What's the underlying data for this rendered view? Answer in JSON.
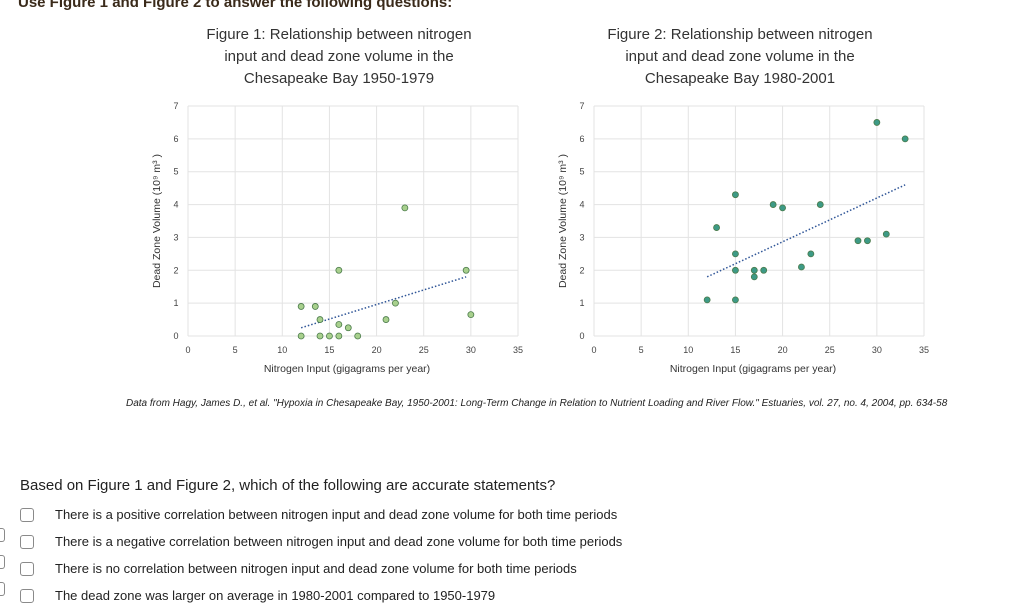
{
  "header": {
    "title": "Use Figure 1 and Figure 2 to answer the following questions:"
  },
  "citation": "Data from Hagy, James D., et al. \"Hypoxia in Chesapeake Bay, 1950-2001: Long-Term Change in Relation to Nutrient Loading and River Flow.\" Estuaries, vol. 27, no. 4, 2004, pp. 634-58",
  "question": {
    "prompt": "Based on Figure 1 and Figure 2, which of the following are accurate statements?",
    "options": [
      {
        "label": "There is a positive correlation between nitrogen input and dead zone volume for both time periods"
      },
      {
        "label": "There is a negative correlation between nitrogen input and dead zone volume for both time periods"
      },
      {
        "label": "There is no correlation between nitrogen input and dead zone volume for both time periods"
      },
      {
        "label": "The dead zone was larger on average in 1980-2001 compared to 1950-1979"
      }
    ]
  },
  "colors": {
    "fig1_marker": "#a8d08d",
    "fig2_marker": "#3d9a86",
    "marker_edge": "#4a7a4a",
    "trendline": "#2f5597"
  },
  "chart_data": [
    {
      "type": "scatter",
      "title_lines": [
        "Figure 1: Relationship between nitrogen",
        "input and dead zone volume in the",
        "Chesapeake Bay 1950-1979"
      ],
      "xlabel": "Nitrogen Input (gigagrams per year)",
      "ylabel": "Dead Zone Volume (10⁹ m³ )",
      "xlim": [
        0,
        35
      ],
      "ylim": [
        0,
        7
      ],
      "xticks": [
        0,
        5,
        10,
        15,
        20,
        25,
        30,
        35
      ],
      "yticks": [
        0,
        1,
        2,
        3,
        4,
        5,
        6,
        7
      ],
      "grid": true,
      "trendline": {
        "x": [
          12,
          29.5
        ],
        "y": [
          0.25,
          1.8
        ]
      },
      "points": [
        [
          12,
          0.9
        ],
        [
          12,
          0
        ],
        [
          13.5,
          0.9
        ],
        [
          14,
          0.5
        ],
        [
          14,
          0
        ],
        [
          15,
          0
        ],
        [
          16,
          2
        ],
        [
          16,
          0.35
        ],
        [
          16,
          0
        ],
        [
          17,
          0.25
        ],
        [
          18,
          0
        ],
        [
          21,
          0.5
        ],
        [
          22,
          1
        ],
        [
          23,
          3.9
        ],
        [
          29.5,
          2
        ],
        [
          30,
          0.65
        ]
      ]
    },
    {
      "type": "scatter",
      "title_lines": [
        "Figure 2: Relationship between nitrogen",
        "input and dead zone volume in the",
        "Chesapeake Bay 1980-2001"
      ],
      "xlabel": "Nitrogen Input (gigagrams per year)",
      "ylabel": "Dead Zone Volume (10⁹ m³ )",
      "xlim": [
        0,
        35
      ],
      "ylim": [
        0,
        7
      ],
      "xticks": [
        0,
        5,
        10,
        15,
        20,
        25,
        30,
        35
      ],
      "yticks": [
        0,
        1,
        2,
        3,
        4,
        5,
        6,
        7
      ],
      "grid": true,
      "trendline": {
        "x": [
          12,
          33
        ],
        "y": [
          1.8,
          4.6
        ]
      },
      "points": [
        [
          12,
          1.1
        ],
        [
          13,
          3.3
        ],
        [
          15,
          4.3
        ],
        [
          15,
          2.5
        ],
        [
          15,
          2
        ],
        [
          15,
          1.1
        ],
        [
          17,
          2
        ],
        [
          17,
          1.8
        ],
        [
          18,
          2
        ],
        [
          19,
          4
        ],
        [
          20,
          3.9
        ],
        [
          22,
          2.1
        ],
        [
          23,
          2.5
        ],
        [
          24,
          4
        ],
        [
          28,
          2.9
        ],
        [
          29,
          2.9
        ],
        [
          30,
          6.5
        ],
        [
          31,
          3.1
        ],
        [
          33,
          6
        ]
      ]
    }
  ]
}
